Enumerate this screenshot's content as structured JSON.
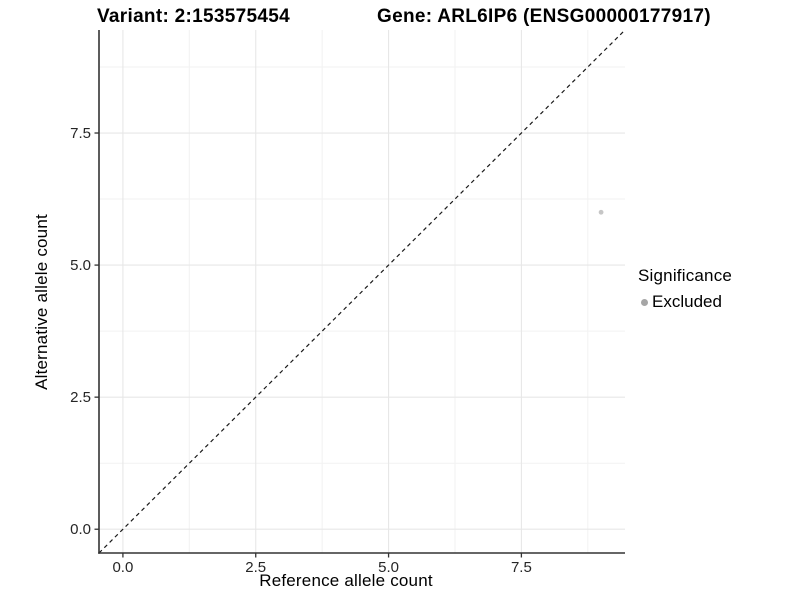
{
  "header": {
    "left_title": "Variant: 2:153575454",
    "right_title": "Gene: ARL6IP6 (ENSG00000177917)"
  },
  "chart_data": {
    "type": "scatter",
    "titles": {
      "left": "Variant: 2:153575454",
      "right": "Gene: ARL6IP6 (ENSG00000177917)"
    },
    "xlabel": "Reference allele count",
    "ylabel": "Alternative allele count",
    "xlim": [
      -0.45,
      9.45
    ],
    "ylim": [
      -0.45,
      9.45
    ],
    "xticks": {
      "values": [
        0,
        2.5,
        5,
        7.5
      ],
      "labels": [
        "0.0",
        "2.5",
        "5.0",
        "7.5"
      ]
    },
    "yticks": {
      "values": [
        0,
        2.5,
        5,
        7.5
      ],
      "labels": [
        "0.0",
        "2.5",
        "5.0",
        "7.5"
      ]
    },
    "minor_xticks": [
      1.25,
      3.75,
      6.25,
      8.75
    ],
    "minor_yticks": [
      1.25,
      3.75,
      6.25,
      8.75
    ],
    "grid": "major+minor",
    "reference_line": {
      "type": "identity",
      "slope": 1,
      "intercept": 0,
      "style": "dashed",
      "color": "#1a1a1a"
    },
    "series": [
      {
        "name": "Excluded",
        "color": "#c6c6c6",
        "points": [
          {
            "x": 9,
            "y": 6
          }
        ]
      }
    ],
    "legend": {
      "title": "Significance",
      "position": "right",
      "items": [
        {
          "label": "Excluded",
          "marker_color": "#a6a6a6"
        }
      ]
    }
  },
  "colors": {
    "background": "#ffffff",
    "axis_line": "#333333",
    "tick_label": "#262626",
    "grid_major": "#e7e7e7",
    "grid_minor": "#f2f2f2"
  }
}
